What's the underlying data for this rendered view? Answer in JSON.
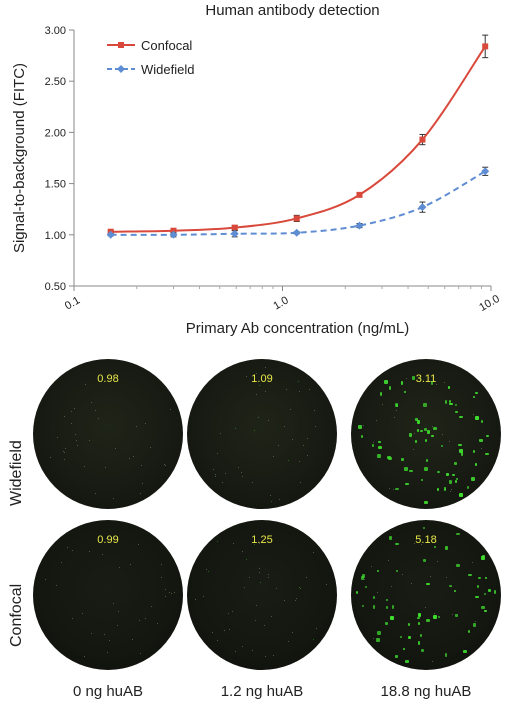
{
  "chart_data": {
    "type": "line",
    "title": "Human antibody detection",
    "xlabel": "Primary Ab concentration (ng/mL)",
    "ylabel": "Signal-to-background (FITC)",
    "x_scale": "log",
    "xlim": [
      0.1,
      10.0
    ],
    "ylim": [
      0.5,
      3.0
    ],
    "x_tick_labels": [
      "0.1",
      "1.0",
      "10.0"
    ],
    "y_tick_labels": [
      "0.50",
      "1.00",
      "1.50",
      "2.00",
      "2.50",
      "3.00"
    ],
    "legend_position": "top-left",
    "grid": false,
    "series": [
      {
        "name": "Confocal",
        "color": "#d9493b",
        "line_style": "solid",
        "marker": "square",
        "x": [
          0.15,
          0.3,
          0.59,
          1.17,
          2.34,
          4.69,
          9.38
        ],
        "y": [
          1.03,
          1.04,
          1.07,
          1.16,
          1.39,
          1.93,
          2.84
        ],
        "error": [
          0.01,
          0.02,
          0.02,
          0.03,
          0.02,
          0.05,
          0.11
        ]
      },
      {
        "name": "Widefield",
        "color": "#5f8dd3",
        "line_style": "dashed",
        "marker": "diamond",
        "x": [
          0.15,
          0.3,
          0.59,
          1.17,
          2.34,
          4.69,
          9.38
        ],
        "y": [
          1.0,
          1.0,
          1.01,
          1.02,
          1.09,
          1.27,
          1.62
        ],
        "error": [
          0.01,
          0.02,
          0.03,
          0.01,
          0.02,
          0.05,
          0.04
        ]
      }
    ]
  },
  "images": {
    "row_labels": [
      "Widefield",
      "Confocal"
    ],
    "column_labels": [
      "0 ng huAB",
      "1.2 ng huAB",
      "18.8 ng huAB"
    ],
    "wells": [
      {
        "row": "Widefield",
        "value": "0.98",
        "signal": "none"
      },
      {
        "row": "Widefield",
        "value": "1.09",
        "signal": "faint"
      },
      {
        "row": "Widefield",
        "value": "3.11",
        "signal": "strong"
      },
      {
        "row": "Confocal",
        "value": "0.99",
        "signal": "none"
      },
      {
        "row": "Confocal",
        "value": "1.25",
        "signal": "faint"
      },
      {
        "row": "Confocal",
        "value": "5.18",
        "signal": "strong"
      }
    ],
    "signal_color": "#3fdc2e",
    "value_color": "#e8e84a"
  }
}
